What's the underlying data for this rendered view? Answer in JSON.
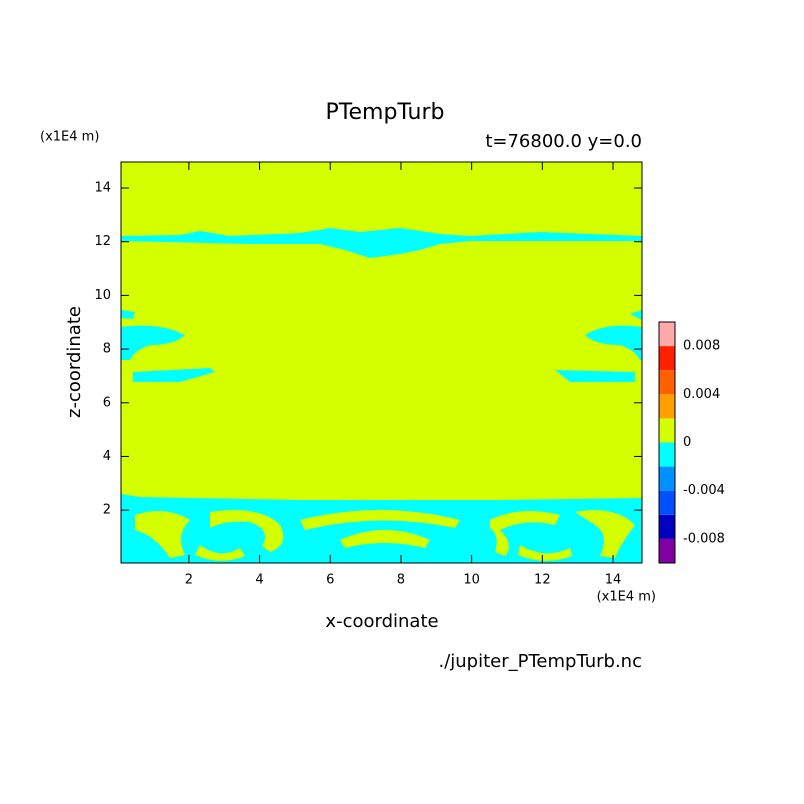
{
  "chart_data": {
    "type": "contour",
    "title": "PTempTurb",
    "subtitle": "t=76800.0 y=0.0",
    "x_label": "x-coordinate",
    "y_label": "z-coordinate",
    "x_unit": "(x1E4 m)",
    "y_unit": "(x1E4 m)",
    "source": "./jupiter_PTempTurb.nc",
    "xlim": [
      0.08,
      14.82
    ],
    "ylim": [
      0.03,
      14.97
    ],
    "xticks": [
      2,
      4,
      6,
      8,
      10,
      12,
      14
    ],
    "yticks": [
      2,
      4,
      6,
      8,
      10,
      12,
      14
    ],
    "colorbar": {
      "levels": [
        -0.01,
        -0.008,
        -0.006,
        -0.004,
        -0.002,
        0,
        0.002,
        0.004,
        0.006,
        0.008,
        0.01
      ],
      "colors": [
        "#8000a0",
        "#0000c0",
        "#0050ff",
        "#0090ff",
        "#00ffff",
        "#d4ff00",
        "#ffa000",
        "#ff6000",
        "#ff2000",
        "#ffaaaa"
      ],
      "ticks": [
        -0.008,
        -0.004,
        0,
        0.004,
        0.008
      ]
    }
  }
}
